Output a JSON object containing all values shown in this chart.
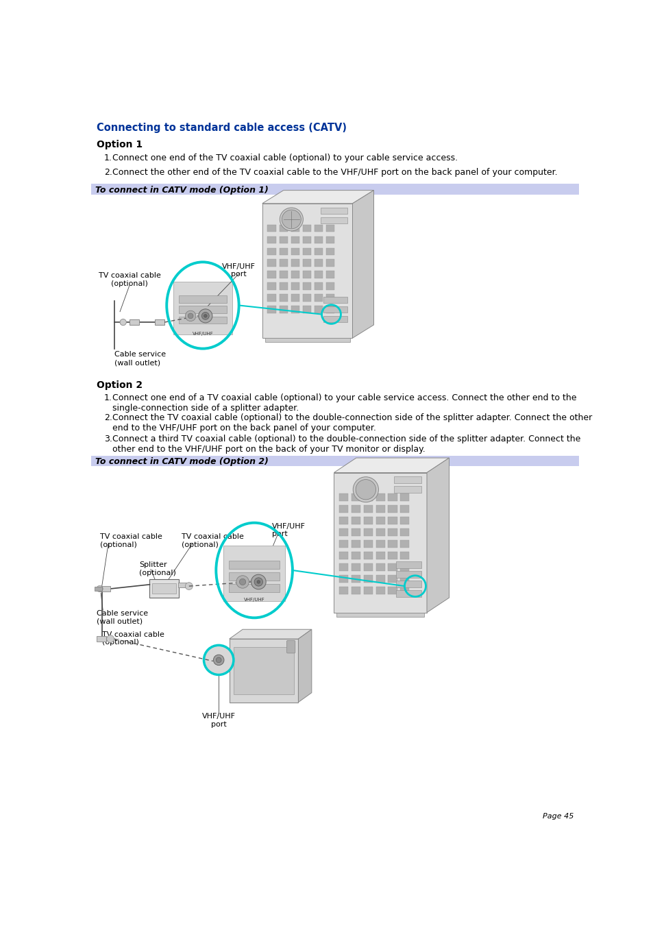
{
  "title": "Connecting to standard cable access (CATV)",
  "title_color": "#003399",
  "title_fontsize": 10.5,
  "background_color": "#ffffff",
  "option1_header": "Option 1",
  "option1_items": [
    "Connect one end of the TV coaxial cable (optional) to your cable service access.",
    "Connect the other end of the TV coaxial cable to the VHF/UHF port on the back panel of your computer."
  ],
  "option1_banner": "To connect in CATV mode (Option 1)",
  "option2_header": "Option 2",
  "option2_items": [
    "Connect one end of a TV coaxial cable (optional) to your cable service access. Connect the other end to the\nsingle-connection side of a splitter adapter.",
    "Connect the TV coaxial cable (optional) to the double-connection side of the splitter adapter. Connect the other\nend to the VHF/UHF port on the back panel of your computer.",
    "Connect a third TV coaxial cable (optional) to the double-connection side of the splitter adapter. Connect the\nother end to the VHF/UHF port on the back of your TV monitor or display."
  ],
  "option2_banner": "To connect in CATV mode (Option 2)",
  "banner_bg": "#c8ccee",
  "banner_text_color": "#000000",
  "page_number": "Page 45",
  "body_fontsize": 9,
  "header_fontsize": 10,
  "cyan_color": "#00cccc",
  "tower_face": "#d8d8d8",
  "tower_side": "#b8b8b8",
  "tower_top": "#e8e8e8",
  "tower_edge": "#888888"
}
